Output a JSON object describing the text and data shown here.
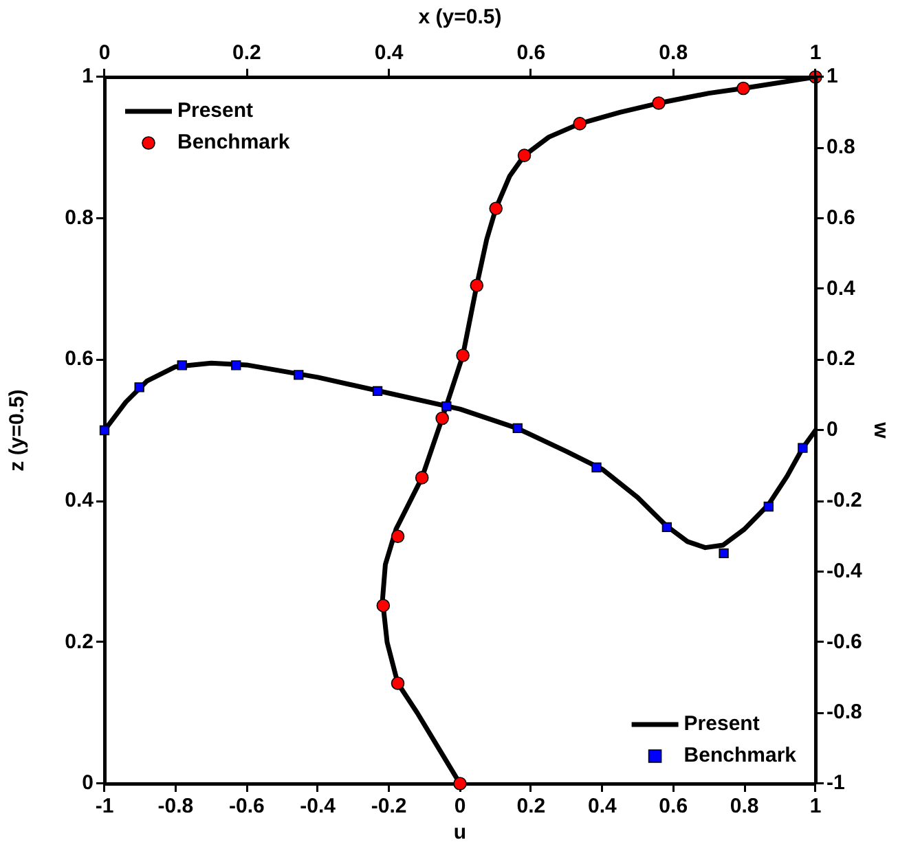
{
  "chart_data": [
    {
      "type": "line",
      "xlabel": "u",
      "ylabel": "z (y=0.5)",
      "xlim": [
        -1,
        1
      ],
      "xticks": [
        -1,
        -0.8,
        -0.6,
        -0.4,
        -0.2,
        0,
        0.2,
        0.4,
        0.6,
        0.8,
        1
      ],
      "ylim": [
        0,
        1
      ],
      "yticks": [
        0,
        0.2,
        0.4,
        0.6,
        0.8,
        1
      ],
      "grid": false,
      "legend": "top left",
      "series": [
        {
          "name": "Present",
          "color": "#000000",
          "marker": "none",
          "line_style": "solid",
          "x": [
            1,
            0.797,
            0.7,
            0.559,
            0.45,
            0.337,
            0.25,
            0.181,
            0.14,
            0.101,
            0.075,
            0.047,
            0.008,
            -0.05,
            -0.107,
            -0.18,
            -0.21,
            -0.218,
            -0.205,
            -0.175,
            -0.12,
            -0.06,
            0
          ],
          "values": [
            1,
            0.984,
            0.977,
            0.963,
            0.95,
            0.934,
            0.915,
            0.889,
            0.86,
            0.814,
            0.77,
            0.705,
            0.606,
            0.517,
            0.433,
            0.36,
            0.31,
            0.26,
            0.2,
            0.142,
            0.1,
            0.05,
            0
          ]
        },
        {
          "name": "Benchmark",
          "type": "scatter",
          "color": "#ff0000",
          "marker": "circle",
          "x": [
            0,
            -0.175,
            -0.216,
            -0.175,
            -0.107,
            -0.05,
            0.008,
            0.047,
            0.101,
            0.181,
            0.337,
            0.559,
            0.797,
            1
          ],
          "values": [
            0,
            0.142,
            0.252,
            0.35,
            0.433,
            0.517,
            0.606,
            0.705,
            0.814,
            0.889,
            0.934,
            0.963,
            0.984,
            1
          ]
        }
      ]
    },
    {
      "type": "line",
      "xlabel": "x (y=0.5)",
      "ylabel": "w",
      "xlim": [
        0,
        1
      ],
      "xticks": [
        0,
        0.2,
        0.4,
        0.6,
        0.8,
        1
      ],
      "ylim": [
        -1,
        1
      ],
      "yticks": [
        -1,
        -0.8,
        -0.6,
        -0.4,
        -0.2,
        0,
        0.2,
        0.4,
        0.6,
        0.8,
        1
      ],
      "grid": false,
      "legend": "bottom right",
      "series": [
        {
          "name": "Present",
          "color": "#000000",
          "marker": "none",
          "line_style": "solid",
          "x": [
            0,
            0.03,
            0.06,
            0.1,
            0.15,
            0.2,
            0.3,
            0.4,
            0.5,
            0.58,
            0.65,
            0.7,
            0.75,
            0.79,
            0.82,
            0.845,
            0.87,
            0.9,
            0.934,
            0.96,
            0.982,
            1
          ],
          "values": [
            0,
            0.08,
            0.14,
            0.18,
            0.19,
            0.185,
            0.15,
            0.105,
            0.06,
            0.006,
            -0.06,
            -0.11,
            -0.19,
            -0.27,
            -0.315,
            -0.332,
            -0.325,
            -0.28,
            -0.21,
            -0.13,
            -0.05,
            0
          ]
        },
        {
          "name": "Benchmark",
          "type": "scatter",
          "color": "#0000ff",
          "marker": "square",
          "x": [
            0,
            0.049,
            0.109,
            0.185,
            0.273,
            0.384,
            0.481,
            0.581,
            0.692,
            0.791,
            0.871,
            0.934,
            0.982
          ],
          "values": [
            0,
            0.122,
            0.184,
            0.184,
            0.157,
            0.111,
            0.068,
            0.006,
            -0.105,
            -0.274,
            -0.348,
            -0.216,
            -0.05
          ]
        }
      ]
    }
  ]
}
